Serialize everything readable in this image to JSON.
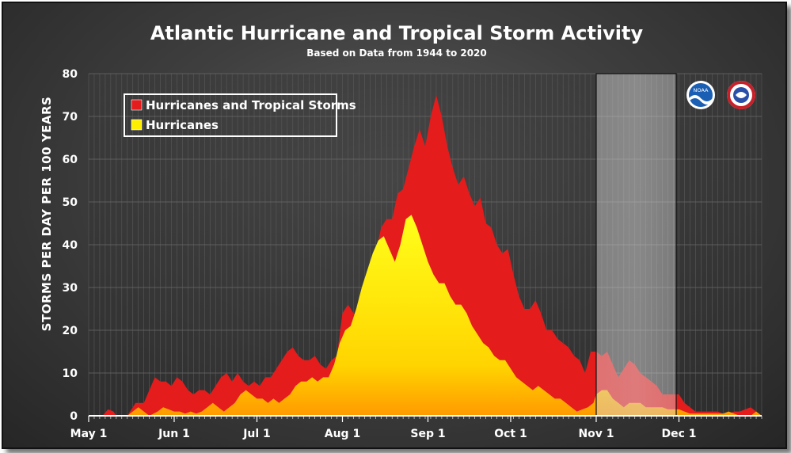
{
  "chart_data": {
    "type": "area",
    "title": "Atlantic Hurricane and Tropical Storm Activity",
    "subtitle": "Based on Data from 1944 to 2020",
    "ylabel": "STORMS PER DAY PER 100 YEARS",
    "xlabel": "",
    "ylim": [
      0,
      80
    ],
    "yticks": [
      "0",
      "10",
      "20",
      "30",
      "40",
      "50",
      "60",
      "70",
      "80"
    ],
    "x_tick_labels": [
      "May 1",
      "Jun 1",
      "Jul 1",
      "Aug 1",
      "Sep 1",
      "Oct 1",
      "Nov 1",
      "Dec 1"
    ],
    "x_tick_days": [
      0,
      31,
      61,
      92,
      123,
      153,
      184,
      214
    ],
    "x_range_days": [
      0,
      244
    ],
    "highlight_region_days": [
      184,
      213
    ],
    "grid": true,
    "legend_position": "top-left",
    "series": [
      {
        "name": "Hurricanes and Tropical Storms",
        "color": "#e41c1c",
        "points": [
          [
            0,
            0
          ],
          [
            5,
            0
          ],
          [
            7,
            1.5
          ],
          [
            9,
            1
          ],
          [
            10,
            0
          ],
          [
            14,
            0
          ],
          [
            17,
            3
          ],
          [
            20,
            3
          ],
          [
            22,
            6
          ],
          [
            24,
            9
          ],
          [
            26,
            8
          ],
          [
            28,
            8
          ],
          [
            30,
            7
          ],
          [
            32,
            9
          ],
          [
            34,
            8
          ],
          [
            36,
            6
          ],
          [
            38,
            5
          ],
          [
            40,
            6
          ],
          [
            42,
            6
          ],
          [
            44,
            5
          ],
          [
            46,
            7
          ],
          [
            48,
            9
          ],
          [
            50,
            10
          ],
          [
            52,
            8
          ],
          [
            54,
            10
          ],
          [
            56,
            8
          ],
          [
            58,
            7
          ],
          [
            60,
            8
          ],
          [
            62,
            7
          ],
          [
            64,
            9
          ],
          [
            66,
            9
          ],
          [
            68,
            11
          ],
          [
            70,
            13
          ],
          [
            72,
            15
          ],
          [
            74,
            16
          ],
          [
            76,
            14
          ],
          [
            78,
            13
          ],
          [
            80,
            13
          ],
          [
            82,
            14
          ],
          [
            84,
            12
          ],
          [
            86,
            11
          ],
          [
            88,
            13
          ],
          [
            90,
            14
          ],
          [
            92,
            24
          ],
          [
            94,
            26
          ],
          [
            96,
            24
          ],
          [
            98,
            23
          ],
          [
            100,
            24
          ],
          [
            102,
            30
          ],
          [
            104,
            38
          ],
          [
            106,
            44
          ],
          [
            108,
            46
          ],
          [
            110,
            46
          ],
          [
            112,
            52
          ],
          [
            114,
            53
          ],
          [
            116,
            58
          ],
          [
            118,
            63
          ],
          [
            120,
            67
          ],
          [
            122,
            63
          ],
          [
            124,
            70
          ],
          [
            126,
            75
          ],
          [
            128,
            70
          ],
          [
            130,
            63
          ],
          [
            132,
            58
          ],
          [
            134,
            54
          ],
          [
            136,
            56
          ],
          [
            138,
            52
          ],
          [
            140,
            49
          ],
          [
            142,
            51
          ],
          [
            144,
            45
          ],
          [
            146,
            44
          ],
          [
            148,
            40
          ],
          [
            150,
            38
          ],
          [
            152,
            39
          ],
          [
            154,
            33
          ],
          [
            156,
            28
          ],
          [
            158,
            25
          ],
          [
            160,
            25
          ],
          [
            162,
            27
          ],
          [
            164,
            24
          ],
          [
            166,
            20
          ],
          [
            168,
            20
          ],
          [
            170,
            18
          ],
          [
            172,
            17
          ],
          [
            174,
            16
          ],
          [
            176,
            14
          ],
          [
            178,
            13
          ],
          [
            180,
            10
          ],
          [
            182,
            15
          ],
          [
            184,
            15
          ],
          [
            186,
            14
          ],
          [
            188,
            15
          ],
          [
            190,
            12
          ],
          [
            192,
            9
          ],
          [
            194,
            11
          ],
          [
            196,
            13
          ],
          [
            198,
            12
          ],
          [
            200,
            10
          ],
          [
            202,
            9
          ],
          [
            204,
            8
          ],
          [
            206,
            7
          ],
          [
            208,
            5
          ],
          [
            210,
            5
          ],
          [
            212,
            5
          ],
          [
            214,
            5
          ],
          [
            216,
            3
          ],
          [
            218,
            2
          ],
          [
            220,
            1
          ],
          [
            222,
            1
          ],
          [
            224,
            1
          ],
          [
            226,
            1
          ],
          [
            228,
            1
          ],
          [
            230,
            0.5
          ],
          [
            232,
            0.5
          ],
          [
            234,
            1
          ],
          [
            236,
            1
          ],
          [
            238,
            1.5
          ],
          [
            240,
            2
          ],
          [
            242,
            1
          ],
          [
            244,
            0
          ]
        ]
      },
      {
        "name": "Hurricanes",
        "color": "#ffee00",
        "points": [
          [
            0,
            0
          ],
          [
            14,
            0
          ],
          [
            16,
            1
          ],
          [
            18,
            2
          ],
          [
            20,
            1
          ],
          [
            22,
            0
          ],
          [
            25,
            1
          ],
          [
            27,
            2
          ],
          [
            29,
            1.5
          ],
          [
            31,
            1
          ],
          [
            33,
            1
          ],
          [
            35,
            0.5
          ],
          [
            37,
            1
          ],
          [
            39,
            0.5
          ],
          [
            41,
            1
          ],
          [
            43,
            2
          ],
          [
            45,
            3
          ],
          [
            47,
            2
          ],
          [
            49,
            1
          ],
          [
            51,
            2
          ],
          [
            53,
            3
          ],
          [
            55,
            5
          ],
          [
            57,
            6
          ],
          [
            59,
            5
          ],
          [
            61,
            4
          ],
          [
            63,
            4
          ],
          [
            65,
            3
          ],
          [
            67,
            4
          ],
          [
            69,
            3
          ],
          [
            71,
            4
          ],
          [
            73,
            5
          ],
          [
            75,
            7
          ],
          [
            77,
            8
          ],
          [
            79,
            8
          ],
          [
            81,
            9
          ],
          [
            83,
            8
          ],
          [
            85,
            9
          ],
          [
            87,
            9
          ],
          [
            89,
            12
          ],
          [
            91,
            17
          ],
          [
            93,
            20
          ],
          [
            95,
            21
          ],
          [
            97,
            25
          ],
          [
            99,
            30
          ],
          [
            101,
            34
          ],
          [
            103,
            38
          ],
          [
            105,
            41
          ],
          [
            107,
            42
          ],
          [
            109,
            39
          ],
          [
            111,
            36
          ],
          [
            113,
            40
          ],
          [
            115,
            46
          ],
          [
            117,
            47
          ],
          [
            119,
            44
          ],
          [
            121,
            40
          ],
          [
            123,
            36
          ],
          [
            125,
            33
          ],
          [
            127,
            31
          ],
          [
            129,
            31
          ],
          [
            131,
            28
          ],
          [
            133,
            26
          ],
          [
            135,
            26
          ],
          [
            137,
            24
          ],
          [
            139,
            21
          ],
          [
            141,
            19
          ],
          [
            143,
            17
          ],
          [
            145,
            16
          ],
          [
            147,
            14
          ],
          [
            149,
            13
          ],
          [
            151,
            13
          ],
          [
            153,
            11
          ],
          [
            155,
            9
          ],
          [
            157,
            8
          ],
          [
            159,
            7
          ],
          [
            161,
            6
          ],
          [
            163,
            7
          ],
          [
            165,
            6
          ],
          [
            167,
            5
          ],
          [
            169,
            4
          ],
          [
            171,
            4
          ],
          [
            173,
            3
          ],
          [
            175,
            2
          ],
          [
            177,
            1
          ],
          [
            179,
            1.5
          ],
          [
            181,
            2
          ],
          [
            183,
            3
          ],
          [
            184,
            5
          ],
          [
            186,
            6
          ],
          [
            188,
            6
          ],
          [
            190,
            4
          ],
          [
            192,
            3
          ],
          [
            194,
            2
          ],
          [
            196,
            3
          ],
          [
            198,
            3
          ],
          [
            200,
            3
          ],
          [
            202,
            2
          ],
          [
            204,
            2
          ],
          [
            206,
            2
          ],
          [
            208,
            2
          ],
          [
            210,
            1.5
          ],
          [
            212,
            1.5
          ],
          [
            214,
            1.5
          ],
          [
            216,
            1
          ],
          [
            218,
            0.5
          ],
          [
            220,
            0.5
          ],
          [
            222,
            0.5
          ],
          [
            224,
            0.5
          ],
          [
            226,
            0.5
          ],
          [
            228,
            0.5
          ],
          [
            230,
            0.5
          ],
          [
            232,
            1
          ],
          [
            234,
            0.5
          ],
          [
            236,
            0
          ],
          [
            238,
            0
          ],
          [
            240,
            0
          ],
          [
            242,
            1
          ],
          [
            244,
            0
          ]
        ]
      }
    ]
  },
  "logos": [
    {
      "name": "NOAA",
      "text": "NOAA",
      "color": "#1b5fb4"
    },
    {
      "name": "National Weather Service",
      "text": "NATIONAL WEATHER SERVICE",
      "color": "#c8202a"
    }
  ]
}
